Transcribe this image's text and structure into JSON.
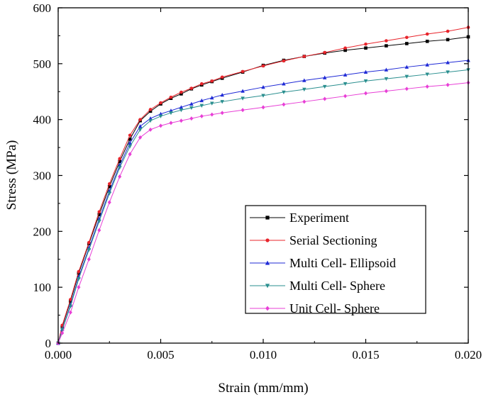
{
  "chart_data": {
    "type": "line",
    "xlabel": "Strain (mm/mm)",
    "ylabel": "Stress (MPa)",
    "xlim": [
      0,
      0.02
    ],
    "ylim": [
      0,
      600
    ],
    "x_ticks": [
      0.0,
      0.005,
      0.01,
      0.015,
      0.02
    ],
    "x_tick_labels": [
      "0.000",
      "0.005",
      "0.010",
      "0.015",
      "0.020"
    ],
    "y_ticks": [
      0,
      100,
      200,
      300,
      400,
      500,
      600
    ],
    "y_tick_labels": [
      "0",
      "100",
      "200",
      "300",
      "400",
      "500",
      "600"
    ],
    "legend_position": "bottom-right",
    "grid": false,
    "series": [
      {
        "name": "Experiment",
        "color": "#000000",
        "marker": "square",
        "x": [
          0,
          0.0002,
          0.0006,
          0.001,
          0.0015,
          0.002,
          0.0025,
          0.003,
          0.0035,
          0.004,
          0.0045,
          0.005,
          0.0055,
          0.006,
          0.0065,
          0.007,
          0.0075,
          0.008,
          0.009,
          0.01,
          0.011,
          0.012,
          0.013,
          0.014,
          0.015,
          0.016,
          0.017,
          0.018,
          0.019,
          0.02
        ],
        "y": [
          0,
          30,
          75,
          125,
          178,
          230,
          280,
          325,
          365,
          398,
          415,
          428,
          438,
          446,
          455,
          462,
          468,
          474,
          485,
          497,
          506,
          513,
          519,
          524,
          528,
          532,
          536,
          540,
          543,
          548
        ]
      },
      {
        "name": "Serial Sectioning",
        "color": "#e8242b",
        "marker": "circle",
        "x": [
          0,
          0.0002,
          0.0006,
          0.001,
          0.0015,
          0.002,
          0.0025,
          0.003,
          0.0035,
          0.004,
          0.0045,
          0.005,
          0.0055,
          0.006,
          0.0065,
          0.007,
          0.0075,
          0.008,
          0.009,
          0.01,
          0.011,
          0.012,
          0.013,
          0.014,
          0.015,
          0.016,
          0.017,
          0.018,
          0.019,
          0.02
        ],
        "y": [
          0,
          32,
          78,
          128,
          180,
          235,
          285,
          330,
          372,
          400,
          418,
          430,
          440,
          449,
          456,
          464,
          469,
          476,
          486,
          496,
          505,
          513,
          520,
          528,
          535,
          541,
          547,
          553,
          558,
          565
        ]
      },
      {
        "name": "Multi Cell- Ellipsoid",
        "color": "#1f2ad6",
        "marker": "triangle-up",
        "x": [
          0,
          0.0002,
          0.0006,
          0.001,
          0.0015,
          0.002,
          0.0025,
          0.003,
          0.0035,
          0.004,
          0.0045,
          0.005,
          0.0055,
          0.006,
          0.0065,
          0.007,
          0.0075,
          0.008,
          0.009,
          0.01,
          0.011,
          0.012,
          0.013,
          0.014,
          0.015,
          0.016,
          0.017,
          0.018,
          0.019,
          0.02
        ],
        "y": [
          0,
          25,
          68,
          118,
          170,
          222,
          272,
          318,
          358,
          388,
          402,
          410,
          416,
          422,
          428,
          434,
          439,
          444,
          451,
          458,
          464,
          470,
          475,
          480,
          485,
          489,
          494,
          498,
          502,
          506
        ]
      },
      {
        "name": "Multi Cell- Sphere",
        "color": "#2a8f8f",
        "marker": "triangle-down",
        "x": [
          0,
          0.0002,
          0.0006,
          0.001,
          0.0015,
          0.002,
          0.0025,
          0.003,
          0.0035,
          0.004,
          0.0045,
          0.005,
          0.0055,
          0.006,
          0.0065,
          0.007,
          0.0075,
          0.008,
          0.009,
          0.01,
          0.011,
          0.012,
          0.013,
          0.014,
          0.015,
          0.016,
          0.017,
          0.018,
          0.019,
          0.02
        ],
        "y": [
          0,
          24,
          66,
          115,
          167,
          218,
          268,
          314,
          352,
          382,
          398,
          406,
          412,
          417,
          421,
          425,
          429,
          432,
          438,
          443,
          449,
          454,
          459,
          464,
          469,
          473,
          477,
          481,
          485,
          489
        ]
      },
      {
        "name": "Unit Cell- Sphere",
        "color": "#e83fd6",
        "marker": "diamond",
        "x": [
          0,
          0.0002,
          0.0006,
          0.001,
          0.0015,
          0.002,
          0.0025,
          0.003,
          0.0035,
          0.004,
          0.0045,
          0.005,
          0.0055,
          0.006,
          0.0065,
          0.007,
          0.0075,
          0.008,
          0.009,
          0.01,
          0.011,
          0.012,
          0.013,
          0.014,
          0.015,
          0.016,
          0.017,
          0.018,
          0.019,
          0.02
        ],
        "y": [
          0,
          18,
          55,
          100,
          150,
          202,
          252,
          298,
          338,
          368,
          382,
          389,
          394,
          398,
          402,
          406,
          409,
          412,
          417,
          422,
          427,
          432,
          437,
          442,
          447,
          451,
          455,
          459,
          462,
          466
        ]
      }
    ]
  }
}
